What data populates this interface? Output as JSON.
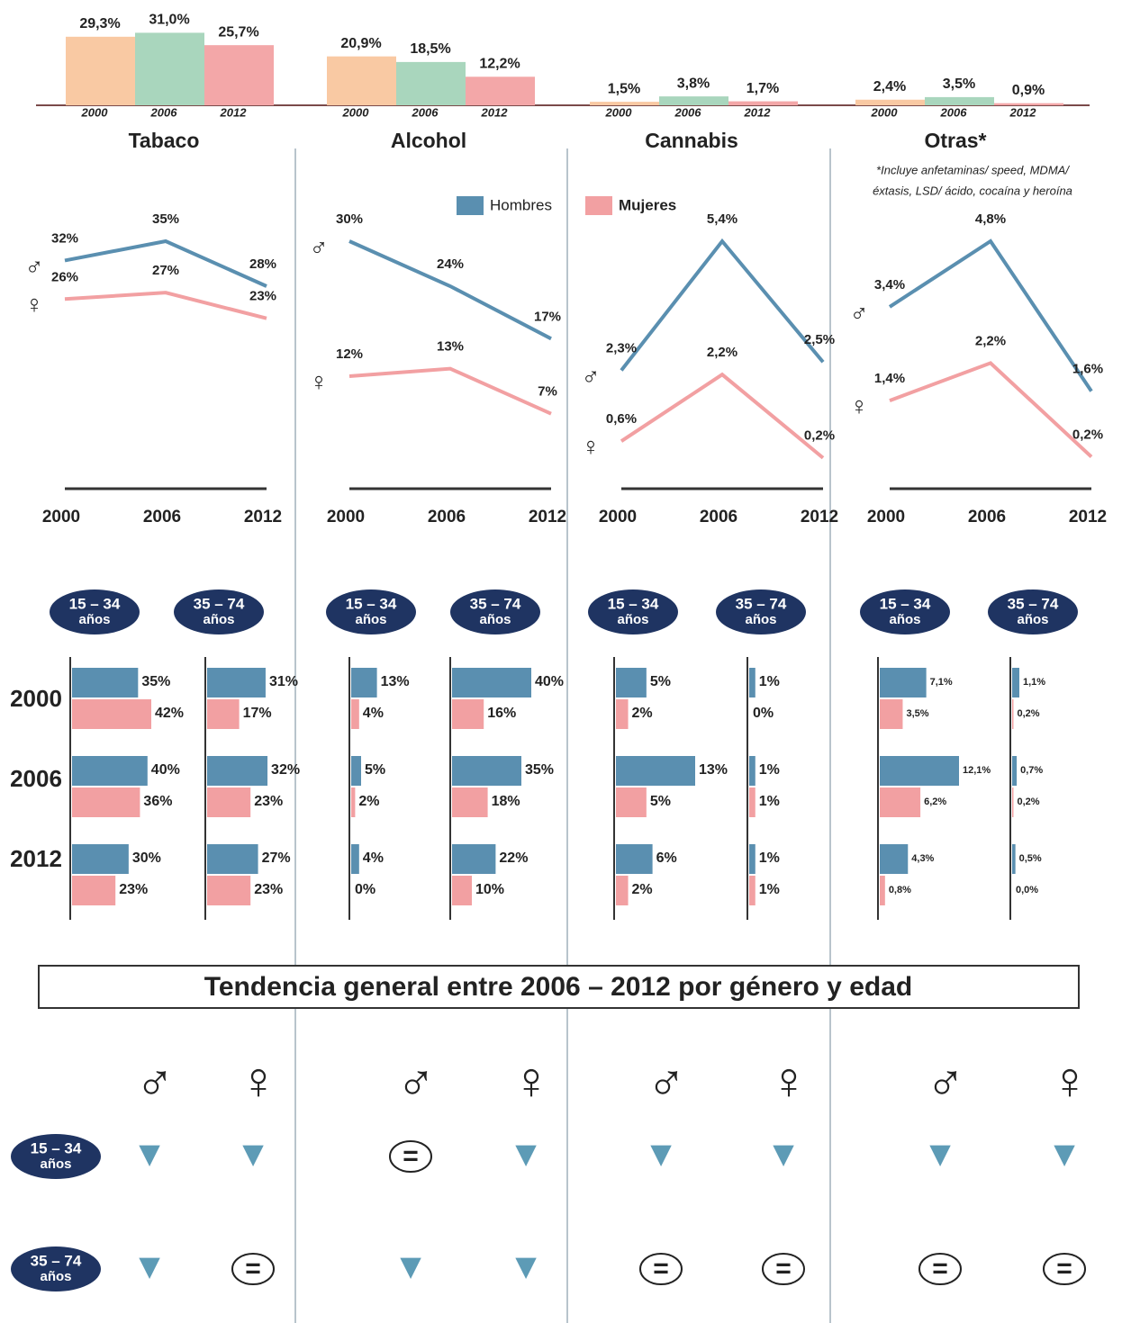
{
  "legend": [
    {
      "name": "Hombres",
      "color": "#5a8fb0"
    },
    {
      "name": "Mujeres",
      "color": "#f2a0a2"
    }
  ],
  "symbols": [
    "♂",
    "♀"
  ],
  "age_years": [
    "2000",
    "2006",
    "2012"
  ],
  "chart_data": [
    {
      "type": "panel",
      "title": "Tabaco",
      "overall": {
        "type": "bar",
        "categories": [
          "2000",
          "2006",
          "2012"
        ],
        "colors": [
          "#f9c9a3",
          "#a9d6bd",
          "#f3a7a8"
        ],
        "values": [
          29.3,
          31.0,
          25.7
        ],
        "value_labels": [
          "29,3%",
          "31,0%",
          "25,7%"
        ]
      },
      "gender": {
        "type": "line",
        "categories": [
          "2000",
          "2006",
          "2012"
        ],
        "series": [
          {
            "values": [
              32,
              35,
              28
            ],
            "value_labels": [
              "32%",
              "35%",
              "28%"
            ]
          },
          {
            "values": [
              26,
              27,
              23
            ],
            "value_labels": [
              "26%",
              "27%",
              "23%"
            ]
          }
        ]
      },
      "age": [
        {
          "type": "barh",
          "label": [
            "15 – 34",
            "años"
          ],
          "series": [
            {
              "values": [
                35,
                40,
                30
              ],
              "value_labels": [
                "35%",
                "40%",
                "30%"
              ]
            },
            {
              "values": [
                42,
                36,
                23
              ],
              "value_labels": [
                "42%",
                "36%",
                "23%"
              ]
            }
          ]
        },
        {
          "type": "barh",
          "label": [
            "35 – 74",
            "años"
          ],
          "series": [
            {
              "values": [
                31,
                32,
                27
              ],
              "value_labels": [
                "31%",
                "32%",
                "27%"
              ]
            },
            {
              "values": [
                17,
                23,
                23
              ],
              "value_labels": [
                "17%",
                "23%",
                "23%"
              ]
            }
          ]
        }
      ]
    },
    {
      "type": "panel",
      "title": "Alcohol",
      "overall": {
        "type": "bar",
        "categories": [
          "2000",
          "2006",
          "2012"
        ],
        "colors": [
          "#f9c9a3",
          "#a9d6bd",
          "#f3a7a8"
        ],
        "values": [
          20.9,
          18.5,
          12.2
        ],
        "value_labels": [
          "20,9%",
          "18,5%",
          "12,2%"
        ]
      },
      "gender": {
        "type": "line",
        "categories": [
          "2000",
          "2006",
          "2012"
        ],
        "series": [
          {
            "values": [
              30,
              24,
              17
            ],
            "value_labels": [
              "30%",
              "24%",
              "17%"
            ]
          },
          {
            "values": [
              12,
              13,
              7
            ],
            "value_labels": [
              "12%",
              "13%",
              "7%"
            ]
          }
        ]
      },
      "age": [
        {
          "type": "barh",
          "label": [
            "15 – 34",
            "años"
          ],
          "series": [
            {
              "values": [
                13,
                5,
                4
              ],
              "value_labels": [
                "13%",
                "5%",
                "4%"
              ]
            },
            {
              "values": [
                4,
                2,
                0
              ],
              "value_labels": [
                "4%",
                "2%",
                "0%"
              ]
            }
          ]
        },
        {
          "type": "barh",
          "label": [
            "35 – 74",
            "años"
          ],
          "series": [
            {
              "values": [
                40,
                35,
                22
              ],
              "value_labels": [
                "40%",
                "35%",
                "22%"
              ]
            },
            {
              "values": [
                16,
                18,
                10
              ],
              "value_labels": [
                "16%",
                "18%",
                "10%"
              ]
            }
          ]
        }
      ]
    },
    {
      "type": "panel",
      "title": "Cannabis",
      "overall": {
        "type": "bar",
        "categories": [
          "2000",
          "2006",
          "2012"
        ],
        "colors": [
          "#f9c9a3",
          "#a9d6bd",
          "#f3a7a8"
        ],
        "values": [
          1.5,
          3.8,
          1.7
        ],
        "value_labels": [
          "1,5%",
          "3,8%",
          "1,7%"
        ]
      },
      "gender": {
        "type": "line",
        "categories": [
          "2000",
          "2006",
          "2012"
        ],
        "series": [
          {
            "values": [
              2.3,
              5.4,
              2.5
            ],
            "value_labels": [
              "2,3%",
              "5,4%",
              "2,5%"
            ]
          },
          {
            "values": [
              0.6,
              2.2,
              0.2
            ],
            "value_labels": [
              "0,6%",
              "2,2%",
              "0,2%"
            ]
          }
        ]
      },
      "age": [
        {
          "type": "barh",
          "label": [
            "15 – 34",
            "años"
          ],
          "series": [
            {
              "values": [
                5,
                13,
                6
              ],
              "value_labels": [
                "5%",
                "13%",
                "6%"
              ]
            },
            {
              "values": [
                2,
                5,
                2
              ],
              "value_labels": [
                "2%",
                "5%",
                "2%"
              ]
            }
          ]
        },
        {
          "type": "barh",
          "label": [
            "35 – 74",
            "años"
          ],
          "series": [
            {
              "values": [
                1,
                1,
                1
              ],
              "value_labels": [
                "1%",
                "1%",
                "1%"
              ]
            },
            {
              "values": [
                0,
                1,
                1
              ],
              "value_labels": [
                "0%",
                "1%",
                "1%"
              ]
            }
          ]
        }
      ]
    },
    {
      "type": "panel",
      "title": "Otras*",
      "note": [
        "*Incluye anfetaminas/ speed, MDMA/",
        "éxtasis, LSD/ ácido, cocaína y heroína"
      ],
      "overall": {
        "type": "bar",
        "categories": [
          "2000",
          "2006",
          "2012"
        ],
        "colors": [
          "#f9c9a3",
          "#a9d6bd",
          "#f3a7a8"
        ],
        "values": [
          2.4,
          3.5,
          0.9
        ],
        "value_labels": [
          "2,4%",
          "3,5%",
          "0,9%"
        ]
      },
      "gender": {
        "type": "line",
        "categories": [
          "2000",
          "2006",
          "2012"
        ],
        "series": [
          {
            "values": [
              3.4,
              4.8,
              1.6
            ],
            "value_labels": [
              "3,4%",
              "4,8%",
              "1,6%"
            ]
          },
          {
            "values": [
              1.4,
              2.2,
              0.2
            ],
            "value_labels": [
              "1,4%",
              "2,2%",
              "0,2%"
            ]
          }
        ]
      },
      "age": [
        {
          "type": "barh",
          "label": [
            "15 – 34",
            "años"
          ],
          "series": [
            {
              "values": [
                7.1,
                12.1,
                4.3
              ],
              "value_labels": [
                "7,1%",
                "12,1%",
                "4,3%"
              ]
            },
            {
              "values": [
                3.5,
                6.2,
                0.8
              ],
              "value_labels": [
                "3,5%",
                "6,2%",
                "0,8%"
              ]
            }
          ]
        },
        {
          "type": "barh",
          "label": [
            "35 – 74",
            "años"
          ],
          "series": [
            {
              "values": [
                1.1,
                0.7,
                0.5
              ],
              "value_labels": [
                "1,1%",
                "0,7%",
                "0,5%"
              ]
            },
            {
              "values": [
                0.2,
                0.2,
                0.0
              ],
              "value_labels": [
                "0,2%",
                "0,2%",
                "0,0%"
              ]
            }
          ]
        }
      ]
    }
  ],
  "trend": {
    "title": "Tendencia general entre 2006 – 2012 por género y edad",
    "rows": [
      {
        "label": [
          "15 – 34",
          "años"
        ],
        "values": [
          [
            "▼",
            "▼"
          ],
          [
            "=",
            "▼"
          ],
          [
            "▼",
            "▼"
          ],
          [
            "▼",
            "▼"
          ]
        ]
      },
      {
        "label": [
          "35 – 74",
          "años"
        ],
        "values": [
          [
            "▼",
            "="
          ],
          [
            "▼",
            "▼"
          ],
          [
            "=",
            "="
          ],
          [
            "=",
            "="
          ]
        ]
      }
    ]
  }
}
